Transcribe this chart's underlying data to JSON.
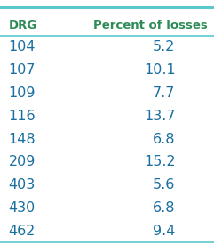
{
  "headers": [
    "DRG",
    "Percent of losses"
  ],
  "rows": [
    [
      "104",
      "5.2"
    ],
    [
      "107",
      "10.1"
    ],
    [
      "109",
      "7.7"
    ],
    [
      "116",
      "13.7"
    ],
    [
      "148",
      "6.8"
    ],
    [
      "209",
      "15.2"
    ],
    [
      "403",
      "5.6"
    ],
    [
      "430",
      "6.8"
    ],
    [
      "462",
      "9.4"
    ]
  ],
  "header_color": "#2e8b57",
  "drg_color": "#1a6fa0",
  "percent_color": "#1a6fa0",
  "line_color": "#5bc8d0",
  "bg_color": "#ffffff",
  "header_fontsize": 9.5,
  "data_fontsize": 11.5,
  "figsize": [
    2.41,
    2.75
  ],
  "dpi": 100
}
